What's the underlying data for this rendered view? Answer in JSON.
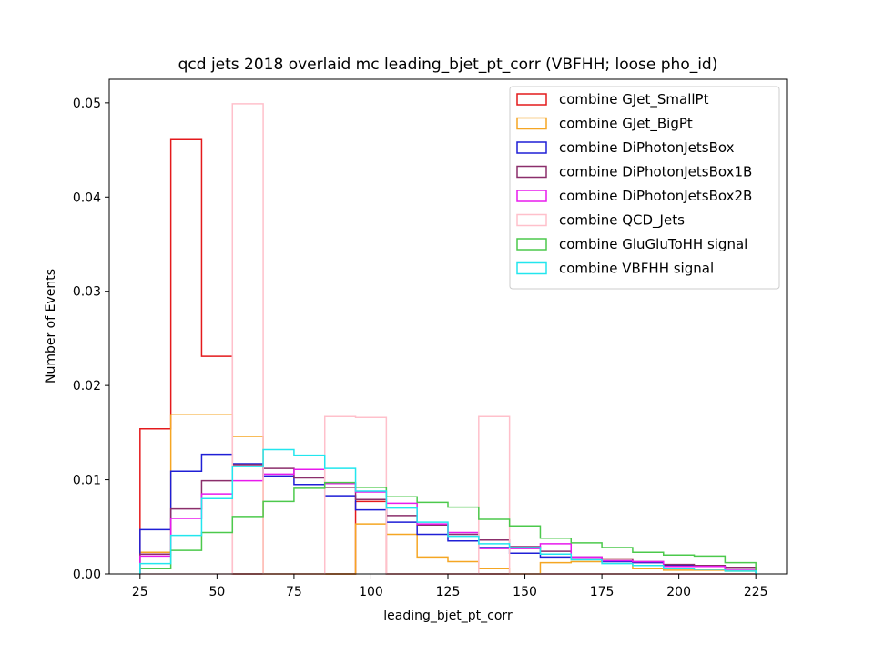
{
  "chart_data": {
    "type": "step-histogram",
    "title": "qcd jets 2018 overlaid mc leading_bjet_pt_corr (VBFHH; loose pho_id)",
    "xlabel": "leading_bjet_pt_corr",
    "ylabel": "Number of Events",
    "xlim": [
      15,
      235
    ],
    "ylim": [
      0,
      0.0525
    ],
    "xticks": [
      25,
      50,
      75,
      100,
      125,
      150,
      175,
      200,
      225
    ],
    "yticks": [
      0.0,
      0.01,
      0.02,
      0.03,
      0.04,
      0.05
    ],
    "ytick_labels": [
      "0.00",
      "0.01",
      "0.02",
      "0.03",
      "0.04",
      "0.05"
    ],
    "bin_edges": [
      25,
      35,
      45,
      55,
      65,
      75,
      85,
      95,
      105,
      115,
      125,
      135,
      145,
      155,
      165,
      175,
      185,
      195,
      205,
      215,
      225
    ],
    "legend_position": "upper right",
    "series": [
      {
        "name": "combine GJet_SmallPt",
        "color": "#e41a1c",
        "values": [
          0.0154,
          0.0461,
          0.0231,
          0.0,
          0.0,
          0.0,
          0.0,
          0.0077,
          0.0,
          0.0,
          0.0,
          0.0,
          0.0,
          0.0,
          0.0,
          0.0,
          0.0,
          0.0,
          0.0,
          0.0
        ]
      },
      {
        "name": "combine GJet_BigPt",
        "color": "#f5a623",
        "values": [
          0.0023,
          0.0169,
          0.0169,
          0.0146,
          0.0,
          0.0,
          0.0,
          0.0053,
          0.0042,
          0.0018,
          0.0013,
          0.0006,
          0.0,
          0.0012,
          0.0013,
          0.0016,
          0.0006,
          0.0004,
          0.0004,
          0.0003
        ]
      },
      {
        "name": "combine DiPhotonJetsBox",
        "color": "#1f1fd6",
        "values": [
          0.0047,
          0.0109,
          0.0127,
          0.0117,
          0.0104,
          0.0095,
          0.0083,
          0.0068,
          0.0055,
          0.0042,
          0.0035,
          0.0028,
          0.0022,
          0.0018,
          0.0016,
          0.0013,
          0.0012,
          0.0009,
          0.0008,
          0.0005
        ]
      },
      {
        "name": "combine DiPhotonJetsBox1B",
        "color": "#8b2e6b",
        "values": [
          0.0021,
          0.0069,
          0.0099,
          0.0116,
          0.0112,
          0.0102,
          0.0092,
          0.0079,
          0.0062,
          0.0052,
          0.0042,
          0.0036,
          0.0029,
          0.0024,
          0.0018,
          0.0016,
          0.0013,
          0.001,
          0.0009,
          0.0007
        ]
      },
      {
        "name": "combine DiPhotonJetsBox2B",
        "color": "#e81aed",
        "values": [
          0.0019,
          0.0059,
          0.0085,
          0.0099,
          0.0106,
          0.0111,
          0.0096,
          0.0087,
          0.0075,
          0.0053,
          0.0044,
          0.0027,
          0.0027,
          0.0032,
          0.0018,
          0.0014,
          0.0013,
          0.0008,
          0.0008,
          0.0005
        ]
      },
      {
        "name": "combine QCD_Jets",
        "color": "#ffc0cb",
        "values": [
          0.0,
          0.0,
          0.0,
          0.0499,
          0.0,
          0.0,
          0.0167,
          0.0166,
          0.0,
          0.0,
          0.0,
          0.0167,
          0.0,
          0.0,
          0.0,
          0.0,
          0.0,
          0.0,
          0.0,
          0.0
        ]
      },
      {
        "name": "combine GluGluToHH signal",
        "color": "#4cc94c",
        "values": [
          0.0006,
          0.0025,
          0.0044,
          0.0061,
          0.0077,
          0.0091,
          0.0097,
          0.0092,
          0.0082,
          0.0076,
          0.0071,
          0.0058,
          0.0051,
          0.0038,
          0.0033,
          0.0028,
          0.0023,
          0.002,
          0.0019,
          0.0012
        ]
      },
      {
        "name": "combine VBFHH signal",
        "color": "#22e6ee",
        "values": [
          0.0011,
          0.0041,
          0.008,
          0.0114,
          0.0132,
          0.0126,
          0.0112,
          0.0088,
          0.007,
          0.0055,
          0.004,
          0.0032,
          0.0028,
          0.0021,
          0.0015,
          0.0011,
          0.0009,
          0.0006,
          0.0005,
          0.0003
        ]
      }
    ]
  }
}
